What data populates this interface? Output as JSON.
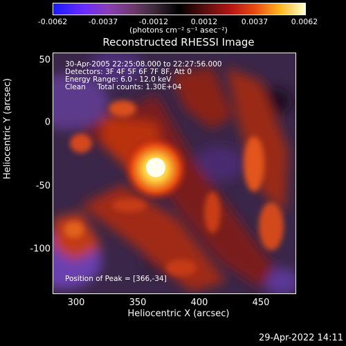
{
  "colorbar": {
    "ticks": [
      "-0.0062",
      "-0.0037",
      "-0.0012",
      "0.0012",
      "0.0037",
      "0.0062"
    ],
    "units": "(photons cm⁻² s⁻¹ asec⁻²)"
  },
  "title": "Reconstructed RHESSI Image",
  "annotations": {
    "time_range": "30-Apr-2005 22:25:08.000 to 22:27:56.000",
    "detectors": "Detectors: 3F 4F 5F 6F 7F 8F, Att 0",
    "energy": "Energy Range: 6.0 - 12.0 keV",
    "method": "Clean     Total counts: 1.30E+04",
    "peak": "Position of Peak = [366,-34]"
  },
  "axes": {
    "xlabel": "Heliocentric X (arcsec)",
    "ylabel": "Heliocentric Y (arcsec)",
    "xticks": [
      "300",
      "350",
      "400",
      "450"
    ],
    "yticks": [
      "50",
      "0",
      "-50",
      "-100"
    ]
  },
  "footer": "29-Apr-2022 14:11"
}
